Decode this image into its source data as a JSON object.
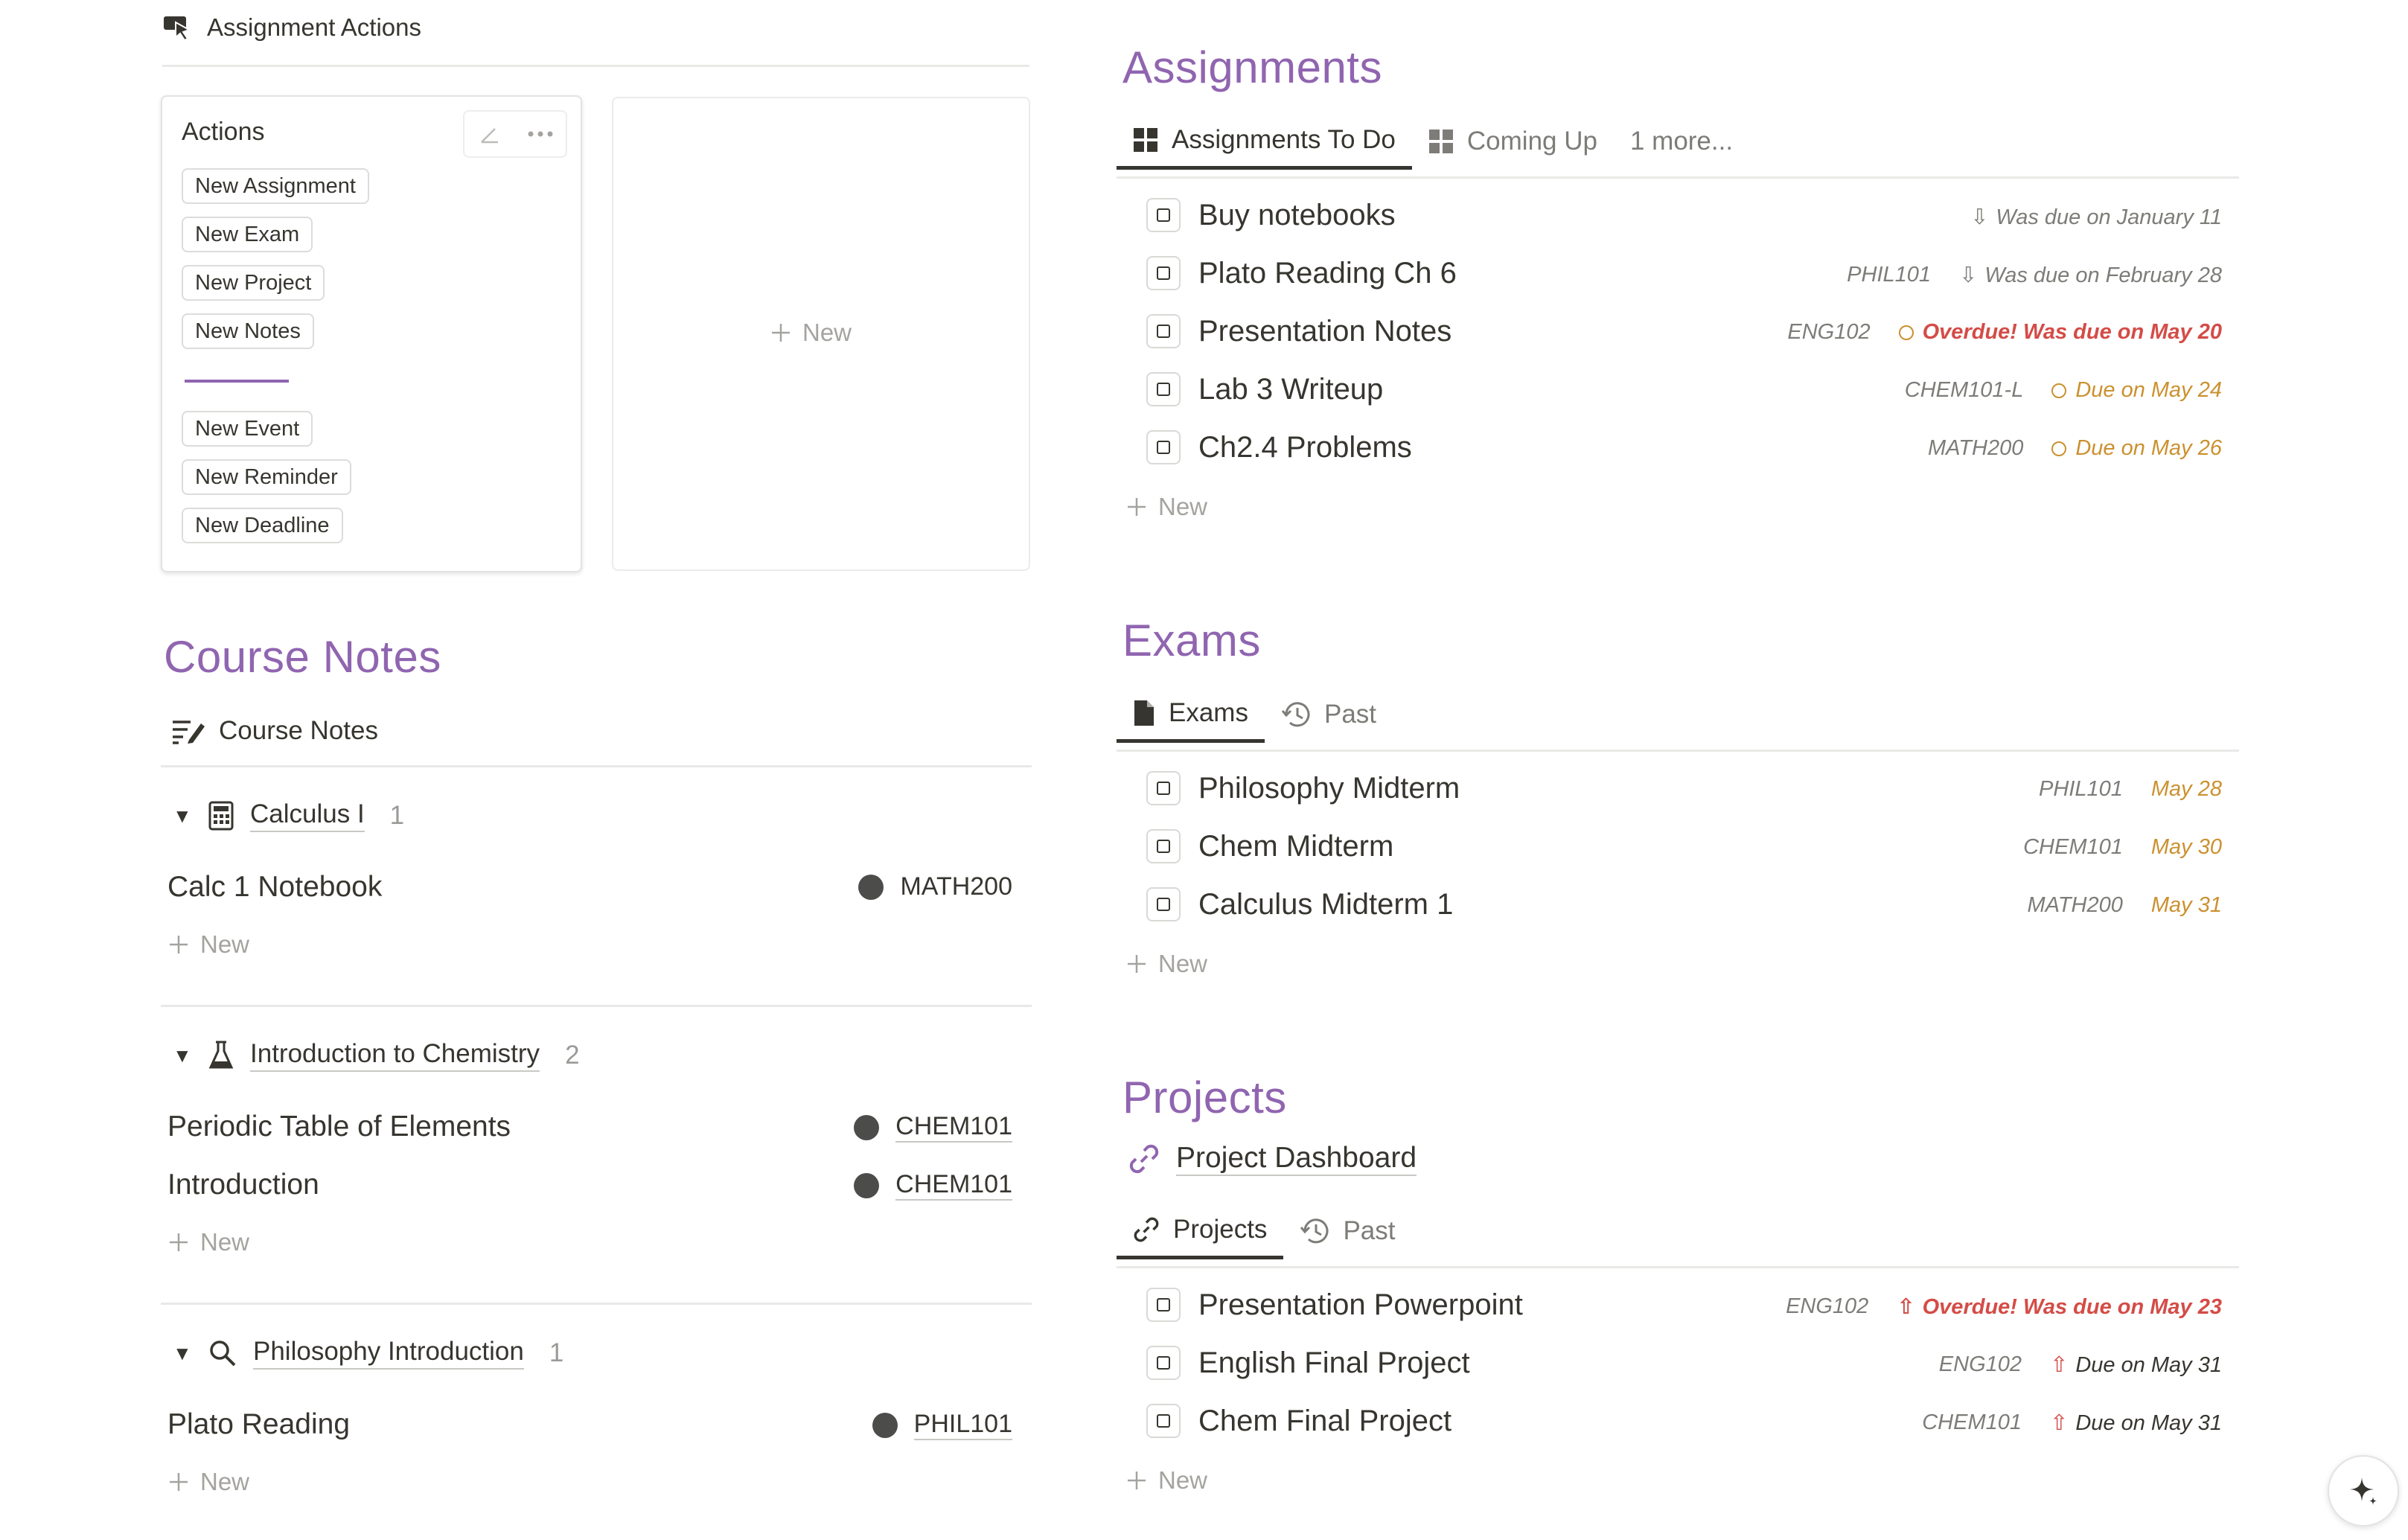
{
  "actions_header": {
    "title": "Assignment Actions",
    "icon": "pointer-click-icon"
  },
  "actions_card": {
    "title": "Actions",
    "buttons": [
      "New Assignment",
      "New Exam",
      "New Project",
      "New Notes",
      "New Event",
      "New Reminder",
      "New Deadline"
    ]
  },
  "empty_card": {
    "new_label": "New"
  },
  "course_notes": {
    "title": "Course Notes",
    "view_label": "Course Notes",
    "new_label": "New",
    "groups": [
      {
        "name": "Calculus I",
        "count": "1",
        "icon": "calculator-icon",
        "rows": [
          {
            "title": "Calc 1 Notebook",
            "course": "MATH200"
          }
        ]
      },
      {
        "name": "Introduction to Chemistry",
        "count": "2",
        "icon": "flask-icon",
        "rows": [
          {
            "title": "Periodic Table of Elements",
            "course": "CHEM101"
          },
          {
            "title": "Introduction",
            "course": "CHEM101"
          }
        ]
      },
      {
        "name": "Philosophy Introduction",
        "count": "1",
        "icon": "search-icon",
        "rows": [
          {
            "title": "Plato Reading",
            "course": "PHIL101"
          }
        ]
      }
    ]
  },
  "assignments": {
    "title": "Assignments",
    "tabs": [
      "Assignments To Do",
      "Coming Up",
      "1 more..."
    ],
    "new_label": "New",
    "items": [
      {
        "title": "Buy notebooks",
        "course": "",
        "due": "Was due on January 11",
        "status": "past"
      },
      {
        "title": "Plato Reading Ch 6",
        "course": "PHIL101",
        "due": "Was due on February 28",
        "status": "past"
      },
      {
        "title": "Presentation Notes",
        "course": "ENG102",
        "due": "Overdue! Was due on May 20",
        "status": "overdue"
      },
      {
        "title": "Lab 3 Writeup",
        "course": "CHEM101-L",
        "due": "Due on May 24",
        "status": "soon"
      },
      {
        "title": "Ch2.4 Problems",
        "course": "MATH200",
        "due": "Due on May 26",
        "status": "soon"
      }
    ]
  },
  "exams": {
    "title": "Exams",
    "tabs": [
      "Exams",
      "Past"
    ],
    "new_label": "New",
    "items": [
      {
        "title": "Philosophy Midterm",
        "course": "PHIL101",
        "due": "May 28"
      },
      {
        "title": "Chem Midterm",
        "course": "CHEM101",
        "due": "May 30"
      },
      {
        "title": "Calculus Midterm 1",
        "course": "MATH200",
        "due": "May 31"
      }
    ]
  },
  "projects": {
    "title": "Projects",
    "dashboard_link": "Project Dashboard",
    "tabs": [
      "Projects",
      "Past"
    ],
    "new_label": "New",
    "items": [
      {
        "title": "Presentation Powerpoint",
        "course": "ENG102",
        "due": "Overdue! Was due on May 23",
        "status": "overdue"
      },
      {
        "title": "English Final Project",
        "course": "ENG102",
        "due": "Due on May 31",
        "status": "upcoming"
      },
      {
        "title": "Chem Final Project",
        "course": "CHEM101",
        "due": "Due on May 31",
        "status": "upcoming"
      }
    ]
  },
  "colors": {
    "accent": "#9065b0",
    "overdue": "#d44c47",
    "soon": "#cb912f",
    "text": "#37352f",
    "muted": "#7d7c78"
  }
}
